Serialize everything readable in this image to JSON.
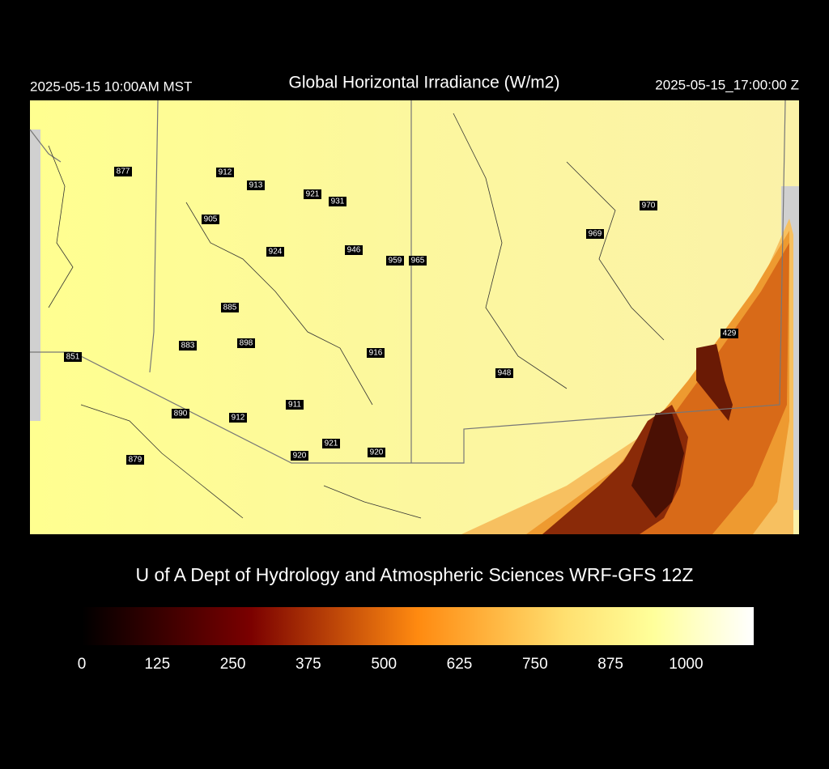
{
  "header": {
    "left": "2025-05-15 10:00AM MST",
    "title": "Global Horizontal Irradiance (W/m2)",
    "right": "2025-05-15_17:00:00 Z"
  },
  "stations": [
    877,
    912,
    913,
    921,
    931,
    905,
    924,
    946,
    959,
    965,
    885,
    883,
    898,
    851,
    916,
    948,
    911,
    890,
    912,
    921,
    920,
    920,
    879,
    970,
    969,
    429
  ],
  "credit": "U of A Dept of Hydrology and Atmospheric Sciences WRF-GFS 12Z",
  "colorbar": {
    "lim": [
      0,
      1112
    ],
    "ticks": [
      0,
      125,
      250,
      375,
      500,
      625,
      750,
      875,
      1000
    ]
  }
}
